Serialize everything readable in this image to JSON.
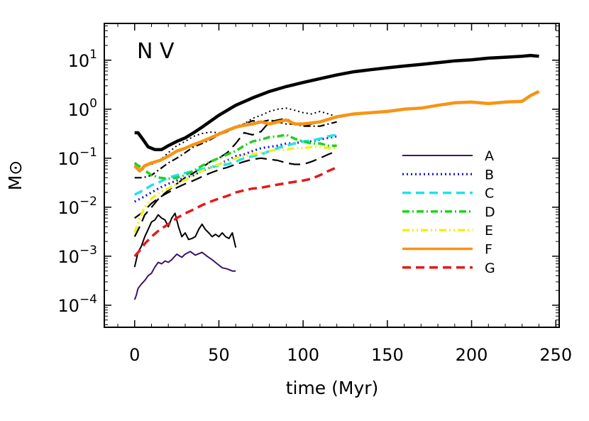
{
  "chart_data": {
    "type": "line",
    "title": "N V",
    "xlabel": "time (Myr)",
    "ylabel": "M⊙",
    "xlim": [
      -18,
      252
    ],
    "ylim_log10": [
      -4.45,
      1.75
    ],
    "y_scale": "log",
    "x_ticks": [
      0,
      50,
      100,
      150,
      200,
      250
    ],
    "y_ticks": [
      {
        "base": "10",
        "exp": "1",
        "log": 1
      },
      {
        "base": "10",
        "exp": "0",
        "log": 0
      },
      {
        "base": "10",
        "exp": "−1",
        "log": -1
      },
      {
        "base": "10",
        "exp": "−2",
        "log": -2
      },
      {
        "base": "10",
        "exp": "−3",
        "log": -3
      },
      {
        "base": "10",
        "exp": "−4",
        "log": -4
      }
    ],
    "legend_position": "right",
    "series": [
      {
        "name": "",
        "color": "#000000",
        "style": "solid",
        "width": 4.5,
        "x": [
          0,
          2,
          5,
          8,
          12,
          16,
          20,
          25,
          30,
          35,
          40,
          45,
          50,
          55,
          60,
          70,
          80,
          90,
          100,
          110,
          120,
          130,
          140,
          150,
          160,
          170,
          180,
          190,
          200,
          210,
          220,
          230,
          235,
          240
        ],
        "y": [
          0.33,
          0.33,
          0.24,
          0.17,
          0.15,
          0.15,
          0.18,
          0.22,
          0.26,
          0.33,
          0.43,
          0.57,
          0.75,
          0.95,
          1.2,
          1.7,
          2.3,
          2.9,
          3.5,
          4.2,
          5.0,
          5.8,
          6.4,
          7.0,
          7.6,
          8.2,
          8.9,
          9.7,
          10.2,
          11.0,
          11.5,
          12.0,
          12.5,
          12.0
        ]
      },
      {
        "name": "A",
        "color": "#3c1469",
        "style": "solid",
        "width": 2,
        "x": [
          0,
          1,
          2,
          4,
          6,
          8,
          10,
          12,
          14,
          16,
          18,
          20,
          22,
          25,
          28,
          30,
          33,
          36,
          40,
          43,
          46,
          49,
          52,
          55,
          58,
          60
        ],
        "y": [
          0.00013,
          0.00016,
          0.00022,
          0.00027,
          0.00032,
          0.0004,
          0.00045,
          0.0006,
          0.00075,
          0.0007,
          0.0008,
          0.00075,
          0.00085,
          0.0011,
          0.00095,
          0.0011,
          0.00125,
          0.00105,
          0.0012,
          0.001,
          0.00085,
          0.0007,
          0.00058,
          0.00055,
          0.0005,
          0.0005
        ]
      },
      {
        "name": "",
        "color": "#000000",
        "style": "solid",
        "width": 2,
        "x": [
          0,
          2,
          4,
          6,
          8,
          10,
          12,
          14,
          16,
          18,
          20,
          22,
          24,
          26,
          28,
          30,
          32,
          34,
          36,
          38,
          40,
          42,
          44,
          46,
          48,
          50,
          52,
          54,
          56,
          58,
          60
        ],
        "y": [
          0.0006,
          0.0012,
          0.0016,
          0.0025,
          0.0035,
          0.005,
          0.0055,
          0.007,
          0.006,
          0.0055,
          0.004,
          0.006,
          0.0075,
          0.004,
          0.0025,
          0.003,
          0.0022,
          0.0023,
          0.0025,
          0.0035,
          0.0045,
          0.0035,
          0.003,
          0.0025,
          0.0028,
          0.0025,
          0.003,
          0.0025,
          0.0023,
          0.003,
          0.0015
        ]
      },
      {
        "name": "",
        "color": "#000000",
        "style": "dot",
        "width": 2,
        "x": [
          0,
          5,
          10,
          15,
          20,
          25,
          30,
          35,
          40,
          45,
          50,
          55,
          60,
          65,
          70,
          75,
          80,
          85,
          90,
          95,
          100,
          105,
          110,
          115,
          120
        ],
        "y": [
          0.07,
          0.07,
          0.075,
          0.09,
          0.13,
          0.18,
          0.22,
          0.28,
          0.32,
          0.34,
          0.33,
          0.35,
          0.45,
          0.5,
          0.65,
          0.75,
          0.9,
          1.0,
          1.05,
          0.95,
          0.85,
          0.8,
          0.9,
          0.8,
          0.7
        ]
      },
      {
        "name": "",
        "color": "#000000",
        "style": "dashdot",
        "width": 2.2,
        "x": [
          0,
          5,
          10,
          15,
          20,
          25,
          30,
          35,
          40,
          45,
          50,
          55,
          60,
          65,
          70,
          75,
          80,
          85,
          90,
          95,
          100,
          105,
          110,
          115,
          120
        ],
        "y": [
          0.04,
          0.04,
          0.045,
          0.06,
          0.08,
          0.1,
          0.13,
          0.17,
          0.2,
          0.24,
          0.3,
          0.35,
          0.42,
          0.5,
          0.58,
          0.55,
          0.6,
          0.55,
          0.5,
          0.5,
          0.45,
          0.45,
          0.45,
          0.5,
          0.55
        ]
      },
      {
        "name": "",
        "color": "#000000",
        "style": "longdash",
        "width": 2.2,
        "x": [
          0,
          3,
          6,
          10,
          15,
          20,
          25,
          30,
          35,
          40,
          45,
          50,
          55,
          60,
          65,
          70,
          75,
          80,
          85,
          90,
          95,
          100,
          105,
          110,
          115,
          120
        ],
        "y": [
          0.0025,
          0.004,
          0.007,
          0.01,
          0.016,
          0.022,
          0.03,
          0.04,
          0.05,
          0.065,
          0.085,
          0.1,
          0.13,
          0.2,
          0.33,
          0.3,
          0.35,
          0.55,
          0.6,
          0.65,
          0.5,
          0.45,
          0.5,
          0.55,
          0.6,
          0.65
        ]
      },
      {
        "name": "",
        "color": "#000000",
        "style": "longdash",
        "width": 2.2,
        "x": [
          0,
          5,
          10,
          15,
          20,
          25,
          30,
          35,
          40,
          45,
          50,
          55,
          60,
          65,
          70,
          75,
          80,
          85,
          90,
          95,
          100,
          105,
          110,
          115,
          120
        ],
        "y": [
          0.006,
          0.008,
          0.012,
          0.016,
          0.02,
          0.025,
          0.03,
          0.035,
          0.042,
          0.05,
          0.058,
          0.065,
          0.075,
          0.085,
          0.095,
          0.1,
          0.095,
          0.09,
          0.08,
          0.075,
          0.075,
          0.085,
          0.1,
          0.12,
          0.14
        ]
      },
      {
        "name": "B",
        "color": "#1a1ad8",
        "style": "dot",
        "width": 3.2,
        "x": [
          0,
          5,
          10,
          15,
          20,
          25,
          30,
          35,
          40,
          45,
          50,
          55,
          60,
          65,
          70,
          75,
          80,
          85,
          90,
          95,
          100,
          105,
          110,
          115,
          120
        ],
        "y": [
          0.013,
          0.016,
          0.02,
          0.025,
          0.03,
          0.035,
          0.04,
          0.045,
          0.055,
          0.065,
          0.075,
          0.09,
          0.11,
          0.12,
          0.14,
          0.16,
          0.17,
          0.18,
          0.2,
          0.2,
          0.22,
          0.22,
          0.24,
          0.26,
          0.28
        ]
      },
      {
        "name": "C",
        "color": "#1ee3f0",
        "style": "dash",
        "width": 3.5,
        "x": [
          0,
          5,
          10,
          15,
          20,
          25,
          30,
          35,
          40,
          45,
          50,
          55,
          60,
          65,
          70,
          75,
          80,
          85,
          90,
          95,
          100,
          105,
          110,
          115,
          120
        ],
        "y": [
          0.018,
          0.022,
          0.028,
          0.033,
          0.04,
          0.045,
          0.05,
          0.055,
          0.06,
          0.065,
          0.07,
          0.075,
          0.085,
          0.1,
          0.11,
          0.12,
          0.14,
          0.16,
          0.18,
          0.2,
          0.22,
          0.23,
          0.25,
          0.28,
          0.3
        ]
      },
      {
        "name": "D",
        "color": "#22d01e",
        "style": "dashdot",
        "width": 3.5,
        "x": [
          0,
          5,
          10,
          15,
          20,
          25,
          30,
          35,
          40,
          45,
          50,
          55,
          60,
          65,
          70,
          75,
          80,
          85,
          90,
          95,
          100,
          105,
          110,
          115,
          120
        ],
        "y": [
          0.08,
          0.06,
          0.045,
          0.04,
          0.038,
          0.04,
          0.045,
          0.055,
          0.07,
          0.085,
          0.1,
          0.12,
          0.14,
          0.18,
          0.22,
          0.24,
          0.27,
          0.28,
          0.3,
          0.25,
          0.22,
          0.2,
          0.2,
          0.18,
          0.18
        ]
      },
      {
        "name": "E",
        "color": "#f0f01e",
        "style": "dashdotdot",
        "width": 3.5,
        "x": [
          0,
          3,
          6,
          10,
          15,
          20,
          25,
          30,
          35,
          40,
          45,
          50,
          55,
          60,
          65,
          70,
          75,
          80,
          85,
          90,
          95,
          100,
          105,
          110,
          115,
          120
        ],
        "y": [
          0.003,
          0.006,
          0.01,
          0.015,
          0.02,
          0.024,
          0.03,
          0.036,
          0.045,
          0.055,
          0.065,
          0.075,
          0.085,
          0.1,
          0.11,
          0.12,
          0.13,
          0.14,
          0.15,
          0.15,
          0.16,
          0.16,
          0.17,
          0.17,
          0.16,
          0.16
        ]
      },
      {
        "name": "F",
        "color": "#f79414",
        "style": "solid",
        "width": 4.5,
        "x": [
          0,
          3,
          6,
          10,
          15,
          20,
          25,
          30,
          35,
          40,
          45,
          50,
          55,
          60,
          65,
          70,
          75,
          80,
          85,
          90,
          95,
          100,
          110,
          120,
          130,
          140,
          150,
          160,
          170,
          180,
          190,
          200,
          210,
          220,
          230,
          235,
          240
        ],
        "y": [
          0.07,
          0.055,
          0.07,
          0.08,
          0.09,
          0.11,
          0.14,
          0.16,
          0.19,
          0.22,
          0.26,
          0.31,
          0.37,
          0.43,
          0.47,
          0.5,
          0.55,
          0.5,
          0.55,
          0.6,
          0.5,
          0.5,
          0.55,
          0.7,
          0.8,
          0.85,
          0.9,
          1.0,
          1.05,
          1.2,
          1.35,
          1.4,
          1.3,
          1.4,
          1.45,
          1.9,
          2.3
        ]
      },
      {
        "name": "G",
        "color": "#e61919",
        "style": "dash",
        "width": 3.5,
        "x": [
          0,
          3,
          6,
          10,
          15,
          20,
          25,
          30,
          35,
          40,
          45,
          50,
          55,
          60,
          65,
          70,
          75,
          80,
          85,
          90,
          95,
          100,
          105,
          110,
          115,
          120
        ],
        "y": [
          0.001,
          0.0013,
          0.0018,
          0.0025,
          0.0035,
          0.0045,
          0.006,
          0.0075,
          0.009,
          0.011,
          0.013,
          0.015,
          0.017,
          0.02,
          0.022,
          0.024,
          0.025,
          0.027,
          0.029,
          0.031,
          0.033,
          0.035,
          0.038,
          0.045,
          0.055,
          0.065
        ]
      }
    ]
  }
}
